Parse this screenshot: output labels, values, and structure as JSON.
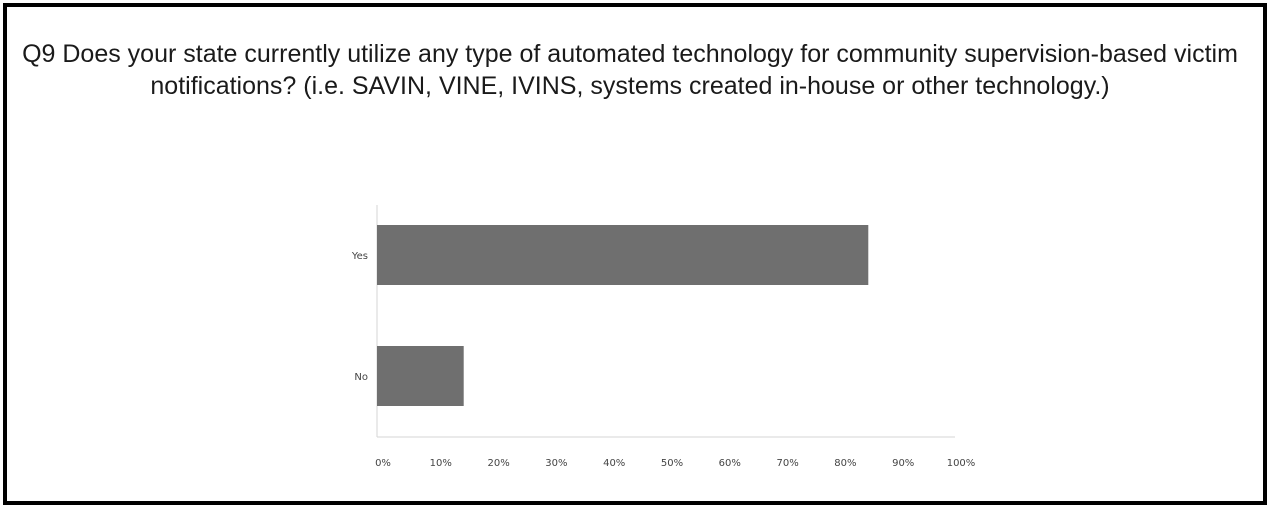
{
  "chart_data": {
    "type": "bar",
    "orientation": "horizontal",
    "title": "Q9 Does your state currently utilize any type of automated technology for community supervision-based victim notifications? (i.e. SAVIN, VINE, IVINS, systems created in-house or other technology.)",
    "categories": [
      "Yes",
      "No"
    ],
    "values": [
      85,
      15
    ],
    "x_ticks": [
      "0%",
      "10%",
      "20%",
      "30%",
      "40%",
      "50%",
      "60%",
      "70%",
      "80%",
      "90%",
      "100%"
    ],
    "xlim": [
      0,
      100
    ],
    "grid": false,
    "legend": "none",
    "colors": {
      "bar": "#6f6f6f",
      "axis": "#d6d6d6",
      "border": "#000000"
    }
  }
}
